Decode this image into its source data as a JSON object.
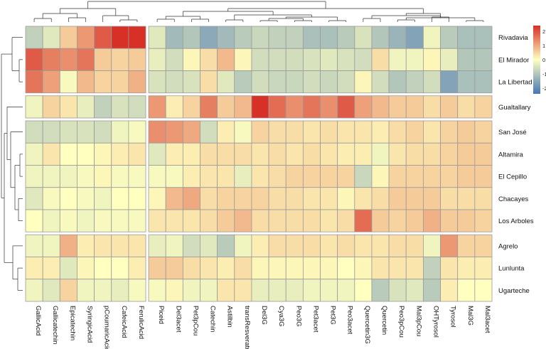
{
  "chart_data": {
    "type": "heatmap",
    "title": "",
    "xlabel": "",
    "ylabel": "",
    "columns": [
      "GallicAcid",
      "Gallicatechin",
      "Epicatechin",
      "SyringicAcid",
      "pCoumaricAcid",
      "CafeicAcid",
      "FerulicAcid",
      "Piceid",
      "Del3acet",
      "Pet3pCou",
      "Catechin",
      "Astilbin",
      "transResveratrol",
      "Del3G",
      "Cya3G",
      "Peo3G",
      "Pet3acet",
      "Pet3G",
      "Peo3acet",
      "Quercetin3G",
      "Quercetin",
      "Peo3pCou",
      "Mal3pCou",
      "OHTyrosol",
      "Tyrosol",
      "Mal3G",
      "Mal3acet"
    ],
    "rows": [
      "Rivadavia",
      "El Mirador",
      "La Libertad",
      "Gualtallary",
      "San José",
      "Altamira",
      "El Cepillo",
      "Chacayes",
      "Los Arboles",
      "Agrelo",
      "Lunlunta",
      "Ugarteche"
    ],
    "row_groups": [
      3,
      1,
      5,
      3
    ],
    "column_groups": [
      7,
      20
    ],
    "values": [
      [
        -0.8,
        -0.4,
        0.6,
        1.2,
        1.9,
        2.4,
        2.4,
        -0.4,
        -1.2,
        -1.0,
        -1.5,
        -1.2,
        -0.9,
        -0.7,
        -0.8,
        -0.8,
        -1.1,
        -1.1,
        -0.9,
        -0.5,
        -1.0,
        -1.3,
        -1.6,
        -0.2,
        -0.9,
        -1.1,
        -1.1
      ],
      [
        1.9,
        1.5,
        1.3,
        1.6,
        0.6,
        0.5,
        0.6,
        -0.3,
        -0.6,
        0.1,
        0.4,
        0.8,
        0.1,
        -0.6,
        -0.6,
        -0.6,
        -0.5,
        -0.4,
        -0.5,
        -0.6,
        0.4,
        -0.2,
        -0.2,
        0.1,
        -0.3,
        -1.0,
        -1.0
      ],
      [
        1.6,
        1.1,
        -0.1,
        0.8,
        0.5,
        0.5,
        0.9,
        -0.5,
        -0.6,
        -0.5,
        0.4,
        -0.4,
        -0.9,
        -0.6,
        -0.7,
        -0.7,
        -0.6,
        -0.7,
        -0.6,
        0.1,
        -0.6,
        -1.0,
        -0.8,
        -0.6,
        -1.6,
        -1.1,
        -1.1
      ],
      [
        -0.2,
        0.5,
        0.3,
        -0.3,
        -0.8,
        -0.5,
        -0.6,
        1.2,
        0.2,
        0.5,
        1.5,
        0.6,
        0.8,
        2.4,
        1.7,
        1.3,
        1.6,
        1.3,
        1.9,
        1.1,
        0.8,
        0.6,
        0.6,
        0.4,
        0.6,
        0.4,
        0.5
      ],
      [
        -0.6,
        -0.6,
        -0.5,
        -0.5,
        -0.6,
        -0.2,
        -0.1,
        1.3,
        1.2,
        1.0,
        -0.6,
        0.2,
        -0.1,
        0.5,
        0.4,
        0.4,
        0.3,
        0.4,
        0.3,
        0.3,
        0.2,
        0.4,
        0.5,
        0.3,
        0.5,
        0.6,
        0.5
      ],
      [
        -0.2,
        0.3,
        0.0,
        0.0,
        0.1,
        0.2,
        0.3,
        -0.4,
        0.2,
        0.2,
        0.4,
        0.4,
        0.4,
        0.3,
        0.4,
        0.3,
        0.4,
        0.3,
        0.2,
        0.2,
        -0.2,
        0.3,
        0.4,
        0.4,
        0.5,
        0.6,
        0.6
      ],
      [
        -0.2,
        -0.2,
        -0.2,
        -0.1,
        0.1,
        -0.1,
        -0.1,
        -0.1,
        -0.1,
        0.2,
        0.3,
        0.3,
        -0.3,
        0.3,
        0.4,
        0.5,
        0.5,
        0.5,
        0.5,
        -0.7,
        0.1,
        0.5,
        0.5,
        0.5,
        0.5,
        0.6,
        0.6
      ],
      [
        -0.4,
        -0.1,
        0.0,
        -0.1,
        -0.2,
        0.0,
        0.0,
        0.1,
        0.8,
        1.0,
        0.4,
        0.5,
        0.5,
        0.5,
        0.4,
        0.4,
        0.3,
        0.3,
        0.1,
        0.3,
        0.4,
        0.6,
        0.6,
        0.6,
        0.4,
        0.4,
        0.4
      ],
      [
        0.0,
        -0.2,
        -0.1,
        -0.2,
        -0.1,
        -0.1,
        -0.1,
        0.3,
        0.3,
        0.3,
        0.4,
        0.6,
        0.8,
        0.4,
        0.4,
        0.4,
        0.4,
        0.3,
        0.4,
        1.7,
        0.6,
        0.5,
        0.6,
        0.9,
        0.6,
        0.6,
        0.5
      ],
      [
        -0.2,
        -0.2,
        0.9,
        0.2,
        0.3,
        0.3,
        0.3,
        -0.3,
        -0.2,
        -0.6,
        -0.4,
        -0.9,
        -0.2,
        0.2,
        0.4,
        0.4,
        0.4,
        0.3,
        0.4,
        0.3,
        0.3,
        0.4,
        0.4,
        -0.2,
        1.2,
        0.5,
        0.5
      ],
      [
        0.2,
        0.2,
        -0.4,
        0.1,
        0.0,
        0.0,
        0.2,
        0.6,
        0.6,
        0.4,
        0.3,
        0.2,
        0.4,
        0.1,
        0.1,
        0.1,
        0.1,
        0.1,
        0.0,
        0.1,
        0.3,
        0.3,
        0.3,
        -0.8,
        0.3,
        0.2,
        0.2
      ],
      [
        -0.2,
        -0.4,
        0.5,
        -0.2,
        -0.2,
        -0.3,
        -0.1,
        -0.1,
        0.1,
        -0.2,
        -0.2,
        0.3,
        0.3,
        -0.3,
        -0.3,
        -0.3,
        -0.2,
        -0.2,
        -0.2,
        0.0,
        -0.9,
        -0.5,
        -0.4,
        -0.9,
        0.2,
        0.0,
        0.0
      ]
    ],
    "legend": {
      "ticks": [
        2,
        1,
        0,
        -1,
        -2
      ],
      "min": -2.4,
      "max": 2.4,
      "colors": {
        "low": "#4575b4",
        "mid": "#ffffbf",
        "high": "#d73027"
      }
    }
  }
}
